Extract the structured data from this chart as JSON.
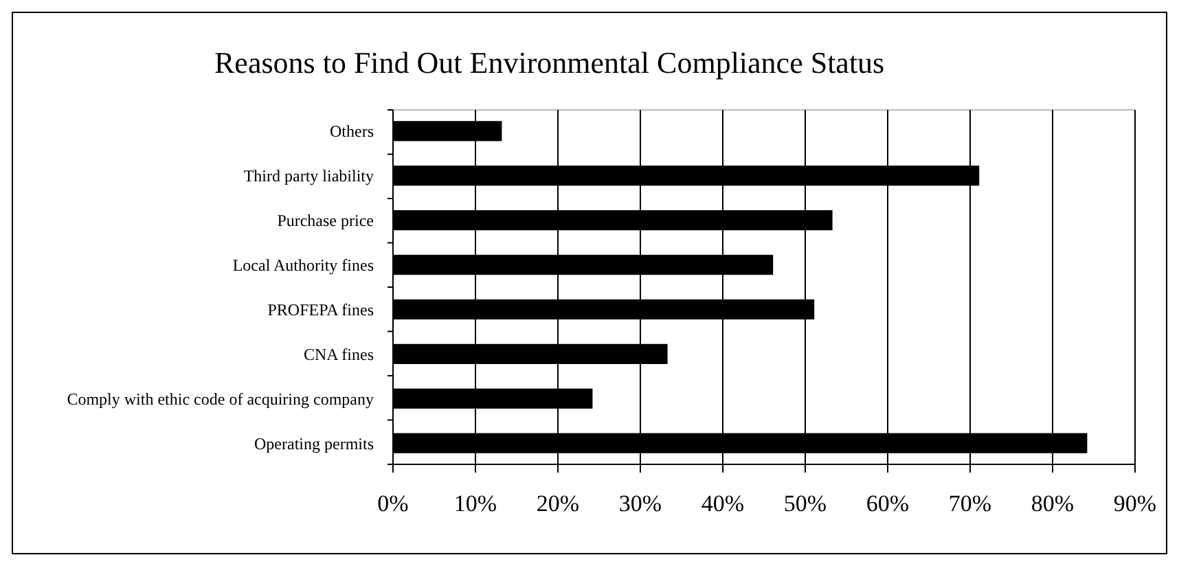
{
  "chart_data": {
    "type": "bar",
    "orientation": "horizontal",
    "title": "Reasons to Find Out Environmental Compliance Status",
    "categories": [
      "Others",
      "Third party liability",
      "Purchase price",
      "Local Authority fines",
      "PROFEPA fines",
      "CNA fines",
      "Comply with ethic code of acquiring company",
      "Operating permits"
    ],
    "values": [
      13.2,
      71.1,
      53.3,
      46.1,
      51.1,
      33.3,
      24.2,
      84.2
    ],
    "color": "#000000",
    "xlim": [
      0,
      90
    ],
    "xticks": [
      {
        "value": 0,
        "label": "0%"
      },
      {
        "value": 10,
        "label": "10%"
      },
      {
        "value": 20,
        "label": "20%"
      },
      {
        "value": 30,
        "label": "30%"
      },
      {
        "value": 40,
        "label": "40%"
      },
      {
        "value": 50,
        "label": "50%"
      },
      {
        "value": 60,
        "label": "60%"
      },
      {
        "value": 70,
        "label": "70%"
      },
      {
        "value": 80,
        "label": "80%"
      },
      {
        "value": 90,
        "label": "90%"
      }
    ],
    "grid": "x"
  }
}
